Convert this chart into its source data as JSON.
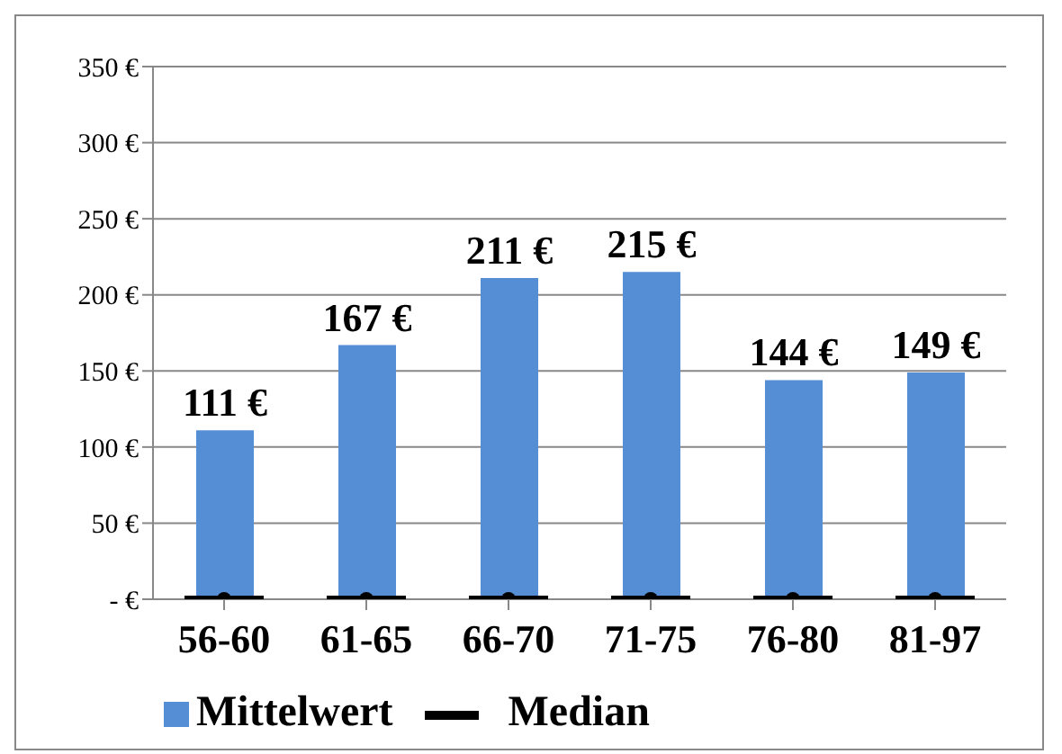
{
  "chart_data": {
    "type": "bar",
    "categories": [
      "56-60",
      "61-65",
      "66-70",
      "71-75",
      "76-80",
      "81-97"
    ],
    "series": [
      {
        "name": "Mittelwert",
        "color": "#558ed5",
        "values": [
          111,
          167,
          211,
          215,
          144,
          149
        ],
        "value_labels": [
          "111 €",
          "167 €",
          "211 €",
          "215 €",
          "144 €",
          "149 €"
        ]
      },
      {
        "name": "Median",
        "type": "scatter",
        "color": "#000000",
        "values": [
          0,
          0,
          0,
          0,
          0,
          0
        ]
      }
    ],
    "ylim": [
      0,
      350
    ],
    "yticks": [
      {
        "value": 0,
        "label": "-   €"
      },
      {
        "value": 50,
        "label": "50 €"
      },
      {
        "value": 100,
        "label": "100 €"
      },
      {
        "value": 150,
        "label": "150 €"
      },
      {
        "value": 200,
        "label": "200 €"
      },
      {
        "value": 250,
        "label": "250 €"
      },
      {
        "value": 300,
        "label": "300 €"
      },
      {
        "value": 350,
        "label": "350 €"
      }
    ],
    "grid": "y",
    "legend": "bottom"
  }
}
